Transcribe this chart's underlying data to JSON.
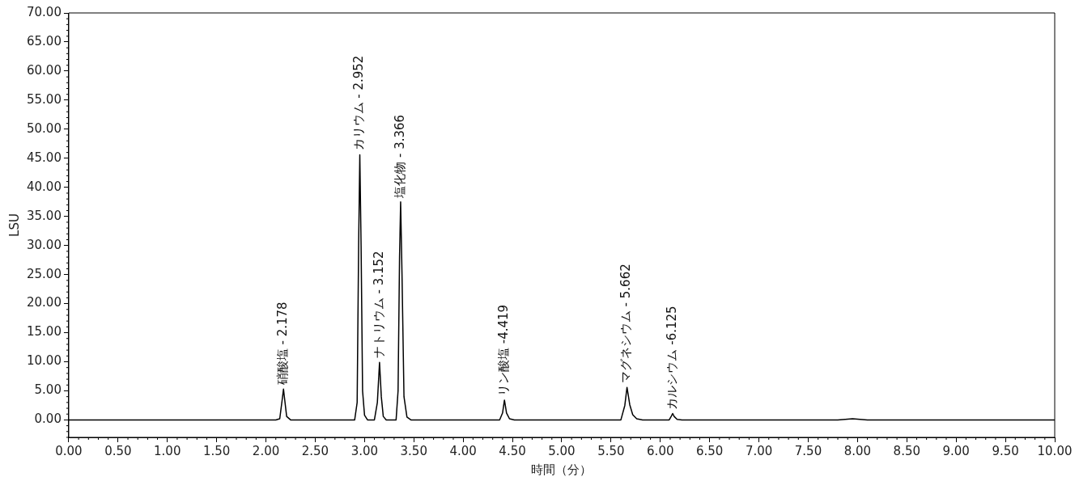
{
  "chart_data": {
    "type": "line",
    "xlabel": "時間（分）",
    "ylabel": "LSU",
    "x": [
      0,
      2.1,
      2.14,
      2.165,
      2.178,
      2.19,
      2.21,
      2.25,
      2.9,
      2.925,
      2.94,
      2.952,
      2.965,
      2.98,
      3.0,
      3.03,
      3.1,
      3.13,
      3.152,
      3.17,
      3.19,
      3.22,
      3.32,
      3.34,
      3.355,
      3.366,
      3.38,
      3.4,
      3.43,
      3.47,
      4.37,
      4.4,
      4.419,
      4.44,
      4.47,
      4.52,
      5.6,
      5.64,
      5.662,
      5.69,
      5.72,
      5.76,
      5.82,
      6.09,
      6.11,
      6.125,
      6.14,
      6.17,
      6.22,
      7.8,
      7.95,
      8.1,
      10
    ],
    "series": [
      {
        "color": "#000000",
        "values": [
          0,
          0,
          0.2,
          3.5,
          5.3,
          3.5,
          0.6,
          0,
          0,
          3,
          30,
          45.6,
          30,
          5,
          0.8,
          0,
          0,
          3,
          9.9,
          4,
          0.6,
          0,
          0,
          5,
          28,
          37.5,
          25,
          4,
          0.5,
          0,
          0,
          1.2,
          3.4,
          1.2,
          0.2,
          0,
          0,
          2.5,
          5.6,
          2.6,
          0.9,
          0.2,
          0,
          0,
          0.6,
          1.1,
          0.6,
          0.1,
          0,
          0,
          0.2,
          0,
          0
        ]
      }
    ],
    "xlim": [
      0,
      10
    ],
    "ylim": [
      -3,
      70
    ],
    "xticks": [
      {
        "value": 0,
        "label": "0.00"
      },
      {
        "value": 0.5,
        "label": "0.50"
      },
      {
        "value": 1,
        "label": "1.00"
      },
      {
        "value": 1.5,
        "label": "1.50"
      },
      {
        "value": 2,
        "label": "2.00"
      },
      {
        "value": 2.5,
        "label": "2.50"
      },
      {
        "value": 3,
        "label": "3.00"
      },
      {
        "value": 3.5,
        "label": "3.50"
      },
      {
        "value": 4,
        "label": "4.00"
      },
      {
        "value": 4.5,
        "label": "4.50"
      },
      {
        "value": 5,
        "label": "5.00"
      },
      {
        "value": 5.5,
        "label": "5.50"
      },
      {
        "value": 6,
        "label": "6.00"
      },
      {
        "value": 6.5,
        "label": "6.50"
      },
      {
        "value": 7,
        "label": "7.00"
      },
      {
        "value": 7.5,
        "label": "7.50"
      },
      {
        "value": 8,
        "label": "8.00"
      },
      {
        "value": 8.5,
        "label": "8.50"
      },
      {
        "value": 9,
        "label": "9.00"
      },
      {
        "value": 9.5,
        "label": "9.50"
      },
      {
        "value": 10,
        "label": "10.00"
      }
    ],
    "yticks": [
      {
        "value": 0,
        "label": "0.00"
      },
      {
        "value": 5,
        "label": "5.00"
      },
      {
        "value": 10,
        "label": "10.00"
      },
      {
        "value": 15,
        "label": "15.00"
      },
      {
        "value": 20,
        "label": "20.00"
      },
      {
        "value": 25,
        "label": "25.00"
      },
      {
        "value": 30,
        "label": "30.00"
      },
      {
        "value": 35,
        "label": "35.00"
      },
      {
        "value": 40,
        "label": "40.00"
      },
      {
        "value": 45,
        "label": "45.00"
      },
      {
        "value": 50,
        "label": "50.00"
      },
      {
        "value": 55,
        "label": "55.00"
      },
      {
        "value": 60,
        "label": "60.00"
      },
      {
        "value": 65,
        "label": "65.00"
      },
      {
        "value": 70,
        "label": "70.00"
      }
    ],
    "annotations": [
      {
        "text": "硝酸塩 - 2.178",
        "x": 2.178,
        "y": 5.3
      },
      {
        "text": "カリウム - 2.952",
        "x": 2.952,
        "y": 45.6
      },
      {
        "text": "ナトリウム - 3.152",
        "x": 3.152,
        "y": 9.9
      },
      {
        "text": "塩化物 - 3.366",
        "x": 3.366,
        "y": 37.5
      },
      {
        "text": "リン酸塩 -4.419",
        "x": 4.419,
        "y": 3.4
      },
      {
        "text": "マグネシウム - 5.662",
        "x": 5.662,
        "y": 5.6
      },
      {
        "text": "カルシウム -6.125",
        "x": 6.125,
        "y": 1.1
      }
    ],
    "grid": false,
    "legend": false,
    "marker": "none",
    "line_style": "solid"
  }
}
